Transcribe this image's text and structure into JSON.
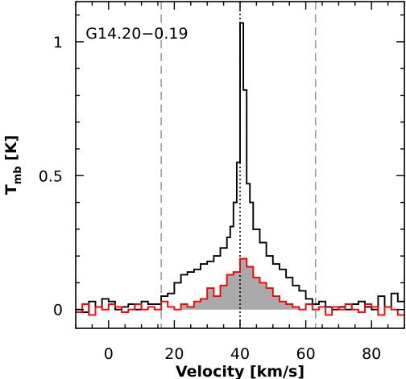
{
  "chart_data": {
    "type": "line",
    "step": true,
    "title": "",
    "annotation": "G14.20−0.19",
    "xlabel": "Velocity [km/s]",
    "ylabel": {
      "main": "T",
      "sub": "mb",
      "unit": " [K]"
    },
    "xlim": [
      -10,
      90
    ],
    "ylim": [
      -0.07,
      1.15
    ],
    "xticks": [
      0,
      20,
      40,
      60,
      80
    ],
    "yticks": [
      0,
      0.5,
      1
    ],
    "ytick_labels": [
      "0",
      "0.5",
      "1"
    ],
    "grid": false,
    "vlines": [
      {
        "x": 16,
        "style": "dashed"
      },
      {
        "x": 40,
        "style": "dotted"
      },
      {
        "x": 63,
        "style": "dashed"
      }
    ],
    "series": [
      {
        "color": "#000000",
        "x": [
          -10,
          -8,
          -6,
          -4,
          -2,
          0,
          2,
          4,
          6,
          8,
          10,
          12,
          14,
          16,
          18,
          20,
          22,
          24,
          26,
          28,
          30,
          32,
          34,
          36,
          37,
          38,
          39,
          40,
          41,
          42,
          43,
          44,
          46,
          48,
          50,
          52,
          54,
          56,
          58,
          60,
          62,
          64,
          66,
          68,
          70,
          72,
          74,
          76,
          78,
          80,
          82,
          84,
          86,
          88
        ],
        "y": [
          0.0,
          -0.01,
          0.03,
          0.01,
          0.04,
          0.03,
          0.0,
          0.01,
          0.02,
          0.0,
          0.03,
          0.02,
          0.02,
          0.05,
          0.06,
          0.1,
          0.13,
          0.14,
          0.15,
          0.17,
          0.18,
          0.2,
          0.23,
          0.27,
          0.31,
          0.4,
          0.55,
          1.07,
          0.82,
          0.47,
          0.4,
          0.3,
          0.25,
          0.2,
          0.17,
          0.15,
          0.12,
          0.09,
          0.07,
          0.04,
          0.02,
          0.03,
          0.01,
          0.0,
          0.01,
          0.0,
          0.02,
          0.03,
          0.01,
          0.0,
          0.05,
          0.01,
          0.06,
          0.03
        ]
      },
      {
        "color": "#ff0000",
        "fill": "#aaaaaa",
        "fill_range": [
          22,
          58
        ],
        "x": [
          -10,
          -8,
          -6,
          -4,
          -2,
          0,
          2,
          4,
          6,
          8,
          10,
          12,
          14,
          16,
          18,
          20,
          22,
          24,
          26,
          28,
          30,
          32,
          34,
          36,
          38,
          40,
          42,
          44,
          46,
          48,
          50,
          52,
          54,
          56,
          58,
          60,
          62,
          64,
          66,
          68,
          70,
          72,
          74,
          76,
          78,
          80,
          82,
          84,
          86,
          88
        ],
        "y": [
          -0.01,
          0.02,
          -0.02,
          0.01,
          0.0,
          0.02,
          0.01,
          -0.01,
          0.0,
          0.02,
          0.0,
          0.01,
          0.0,
          0.03,
          0.01,
          0.0,
          0.02,
          0.01,
          0.03,
          0.04,
          0.08,
          0.05,
          0.09,
          0.13,
          0.14,
          0.19,
          0.16,
          0.12,
          0.1,
          0.08,
          0.05,
          0.03,
          0.02,
          0.01,
          0.0,
          0.02,
          0.0,
          0.01,
          -0.02,
          0.01,
          0.0,
          0.02,
          0.0,
          -0.01,
          0.02,
          0.01,
          -0.02,
          0.01,
          0.0,
          -0.02
        ]
      }
    ]
  }
}
